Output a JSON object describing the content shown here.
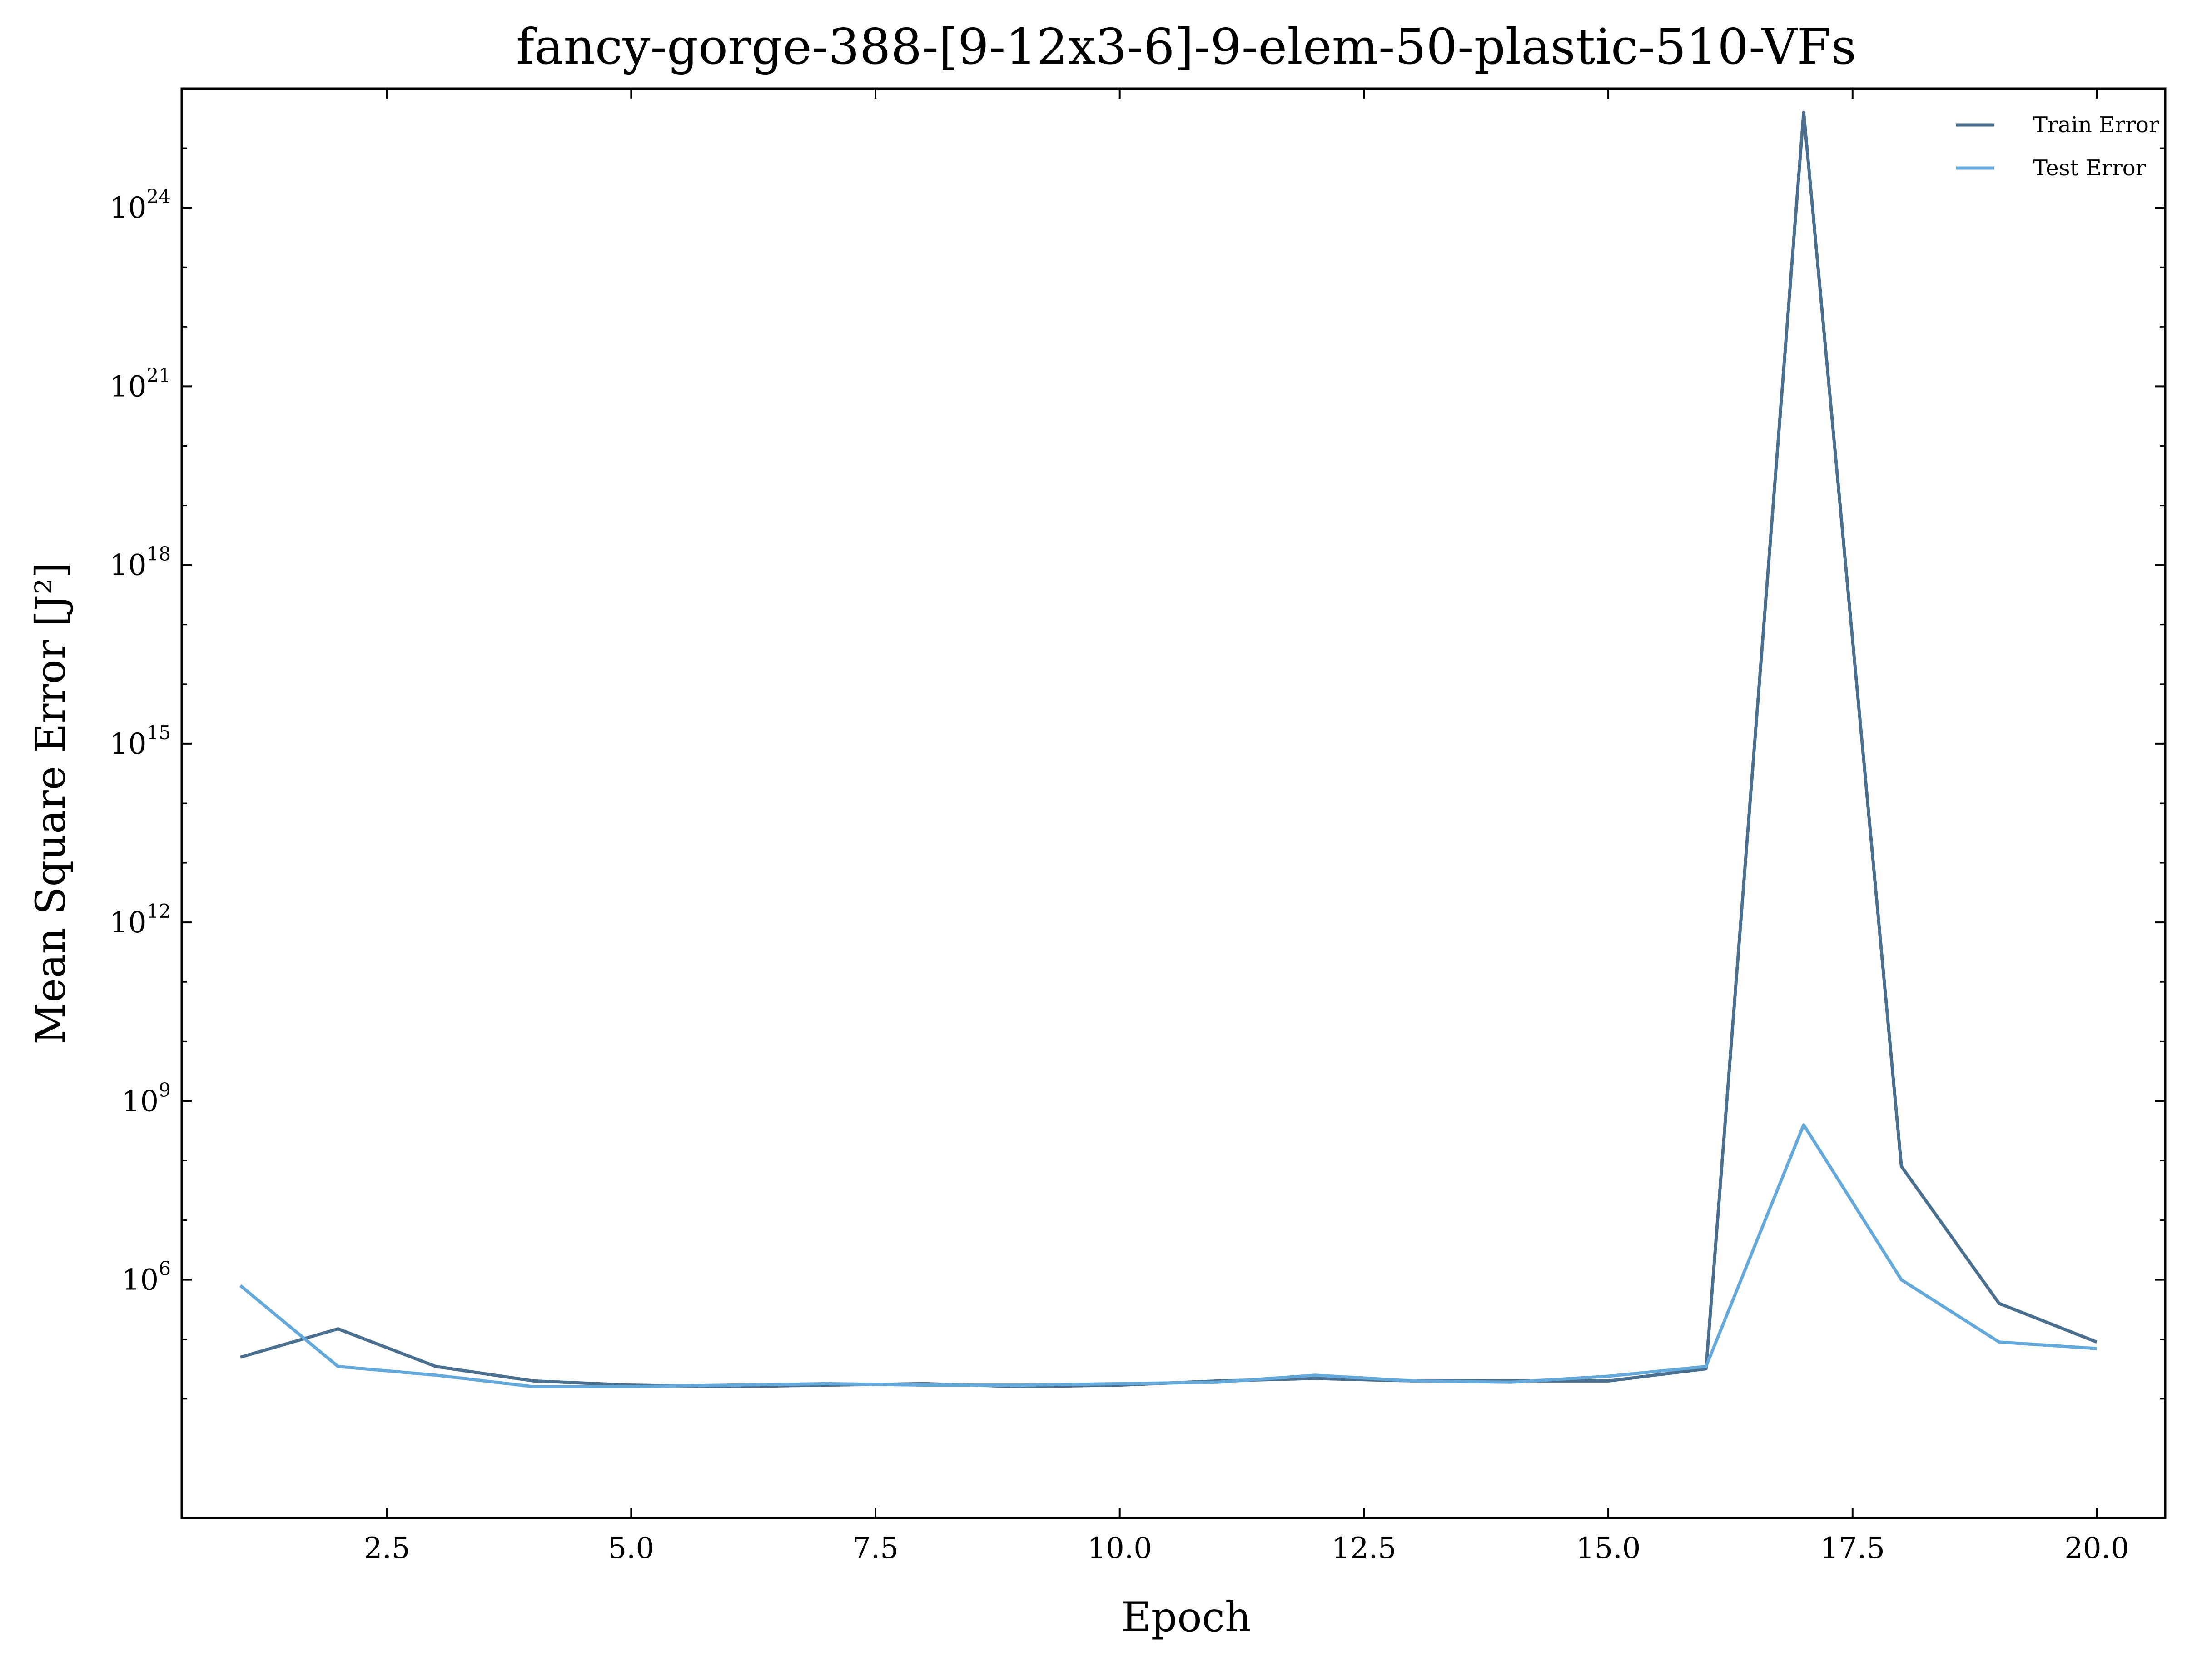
{
  "chart_data": {
    "type": "line",
    "title": "fancy-gorge-388-[9-12x3-6]-9-elem-50-plastic-510-VFs",
    "xlabel": "Epoch",
    "ylabel": "Mean Square Error [J²]",
    "yscale": "log",
    "xlim": [
      0.4,
      20.7
    ],
    "ylim": [
      100,
      1e+26
    ],
    "x_ticks": [
      2.5,
      5.0,
      7.5,
      10.0,
      12.5,
      15.0,
      17.5,
      20.0
    ],
    "x_tick_labels": [
      "2.5",
      "5.0",
      "7.5",
      "10.0",
      "12.5",
      "15.0",
      "17.5",
      "20.0"
    ],
    "y_ticks": [
      {
        "value": 1000000.0,
        "base": "10",
        "exp": "6"
      },
      {
        "value": 1000000000.0,
        "base": "10",
        "exp": "9"
      },
      {
        "value": 1000000000000.0,
        "base": "10",
        "exp": "12"
      },
      {
        "value": 1000000000000000.0,
        "base": "10",
        "exp": "15"
      },
      {
        "value": 1e+18,
        "base": "10",
        "exp": "18"
      },
      {
        "value": 1e+21,
        "base": "10",
        "exp": "21"
      },
      {
        "value": 1e+24,
        "base": "10",
        "exp": "24"
      }
    ],
    "grid": false,
    "legend_position": "top-right",
    "x": [
      1,
      2,
      3,
      4,
      5,
      6,
      7,
      8,
      9,
      10,
      11,
      12,
      13,
      14,
      15,
      16,
      17,
      18,
      19,
      20
    ],
    "series": [
      {
        "name": "Train Error",
        "color": "#4a6f8f",
        "values": [
          50000,
          150000,
          35000,
          20000,
          17000,
          16000,
          17000,
          18000,
          16000,
          17000,
          20000,
          22000,
          20000,
          20000,
          20000,
          32000,
          4e+25,
          80000000,
          400000,
          90000
        ]
      },
      {
        "name": "Test Error",
        "color": "#64a9d9",
        "values": [
          800000,
          35000,
          25000,
          16000,
          16000,
          17000,
          18000,
          17000,
          17000,
          18000,
          19000,
          25000,
          20000,
          19000,
          24000,
          35000,
          400000000,
          1000000,
          90000,
          70000
        ]
      }
    ]
  }
}
